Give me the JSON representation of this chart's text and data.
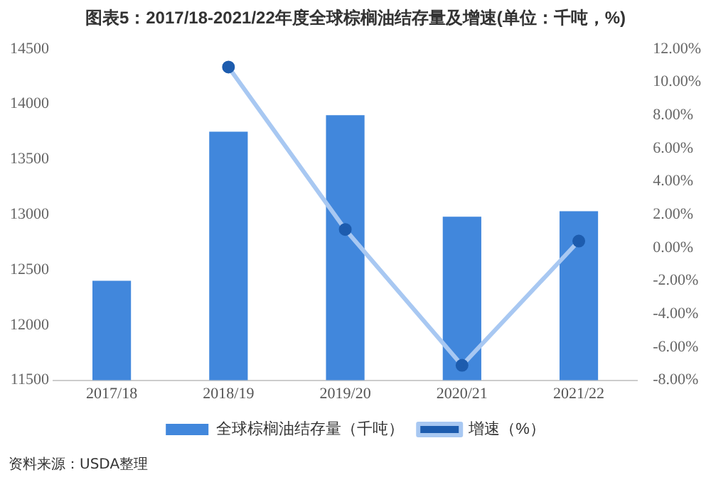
{
  "chart_data": {
    "type": "bar",
    "title": "图表5：2017/18-2021/22年度全球棕榈油结存量及增速(单位：千吨，%)",
    "categories": [
      "2017/18",
      "2018/19",
      "2019/20",
      "2020/21",
      "2021/22"
    ],
    "series": [
      {
        "name": "全球棕榈油结存量（千吨）",
        "color": "#4187dc",
        "values": [
          12400,
          13750,
          13900,
          12980,
          13030
        ]
      },
      {
        "name": "增速（%）",
        "type": "line",
        "axis": "y2",
        "color": "#a8c8f2",
        "values": [
          null,
          10.9,
          1.1,
          -7.1,
          0.4
        ]
      }
    ],
    "ylim": [
      11500,
      14500
    ],
    "yticks": [
      11500,
      12000,
      12500,
      13000,
      13500,
      14000,
      14500
    ],
    "y2lim": [
      -8,
      12
    ],
    "y2ticks": [
      {
        "value": -8,
        "label": "-8.00%"
      },
      {
        "value": -6,
        "label": "-6.00%"
      },
      {
        "value": -4,
        "label": "-4.00%"
      },
      {
        "value": -2,
        "label": "-2.00%"
      },
      {
        "value": 0,
        "label": "0.00%"
      },
      {
        "value": 2,
        "label": "2.00%"
      },
      {
        "value": 4,
        "label": "4.00%"
      },
      {
        "value": 6,
        "label": "6.00%"
      },
      {
        "value": 8,
        "label": "8.00%"
      },
      {
        "value": 10,
        "label": "10.00%"
      },
      {
        "value": 12,
        "label": "12.00%"
      }
    ],
    "grid": false,
    "legend": "bottom",
    "marker": "circle",
    "annotations": [
      "资料来源：USDA整理"
    ]
  }
}
